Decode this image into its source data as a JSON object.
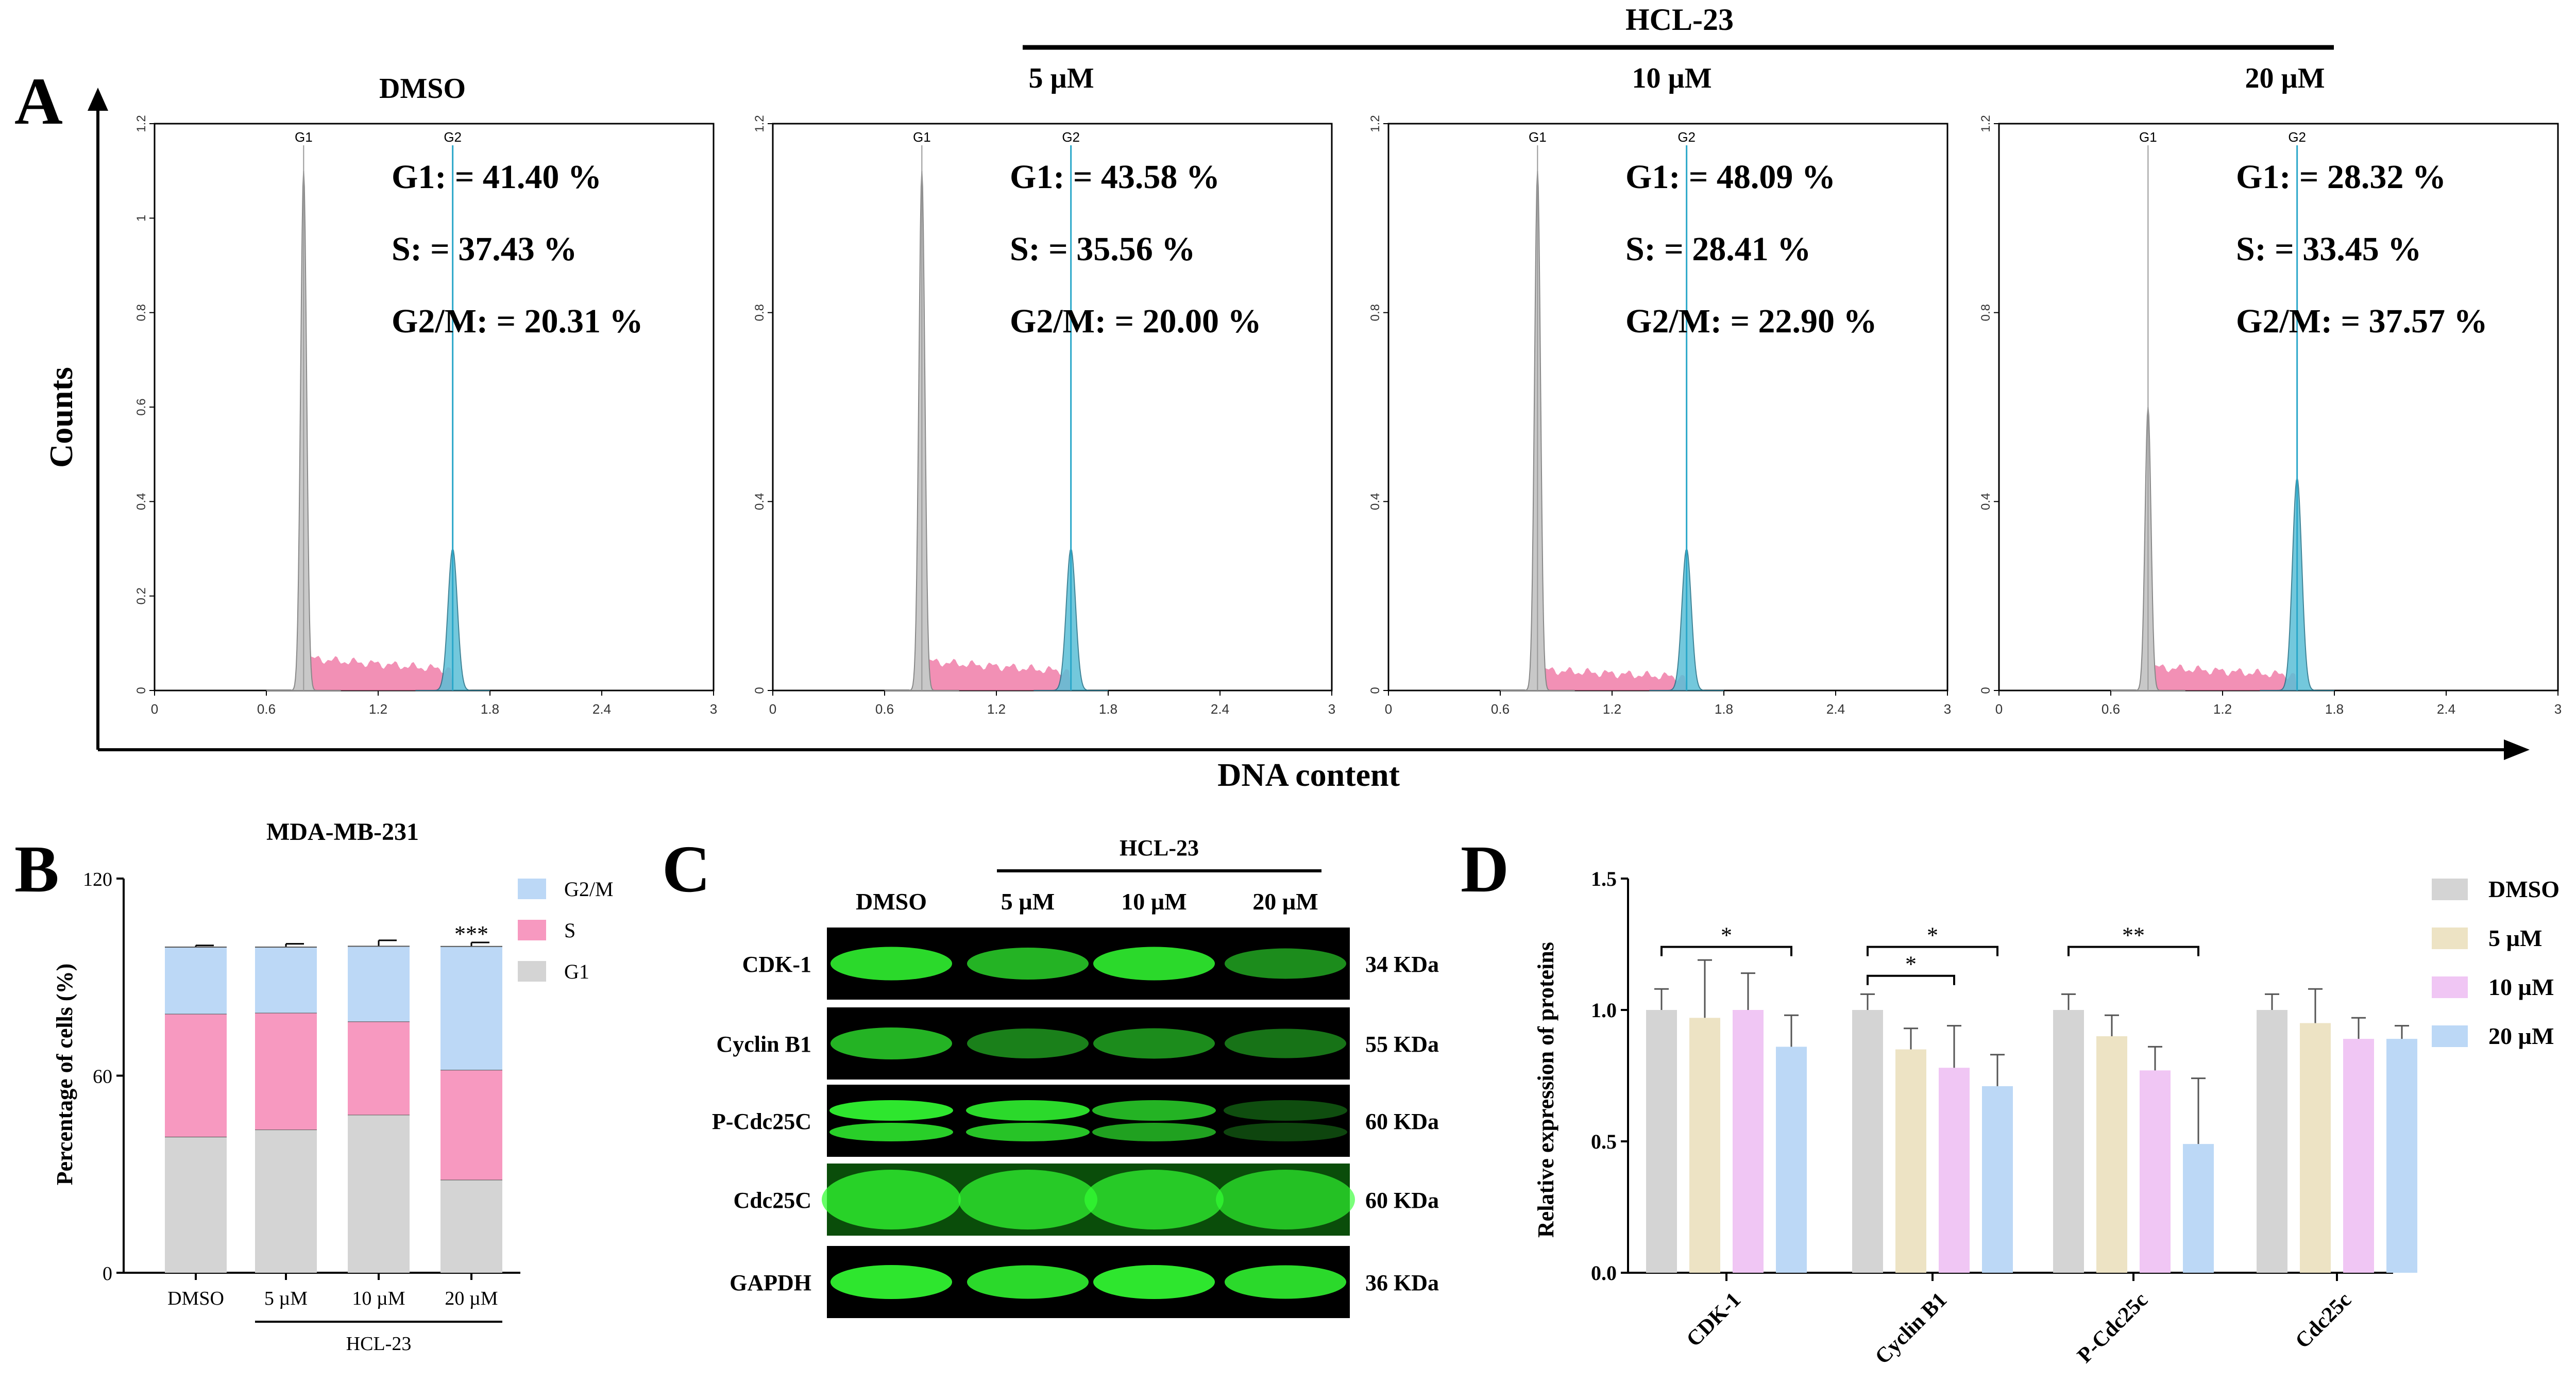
{
  "panels": {
    "a": "A",
    "b": "B",
    "c": "C",
    "d": "D"
  },
  "flow": {
    "group_label": "HCL-23",
    "control_label": "DMSO",
    "dose_labels": [
      "5 µM",
      "10 µM",
      "20 µM"
    ],
    "ylabel": "Counts",
    "xlabel": "DNA content",
    "peak_labels": [
      "G1",
      "G2"
    ],
    "ticks_x": [
      "0",
      "0.6",
      "1.2",
      "1.8",
      "2.4",
      "3"
    ],
    "ticks_y": [
      "0",
      "0.2",
      "0.4",
      "0.6",
      "0.8",
      "1",
      "1.2"
    ],
    "ticks_y_short": [
      "0",
      "0.4",
      "0.8",
      "1.2"
    ],
    "stat_names": [
      "G1:",
      "S:",
      "G2/M:"
    ],
    "colors": {
      "g1": "#c8c8c8",
      "s": "#f07ca8",
      "g2": "#5bbfd6",
      "g2line": "#2aa7c9"
    },
    "plots": [
      {
        "title": "DMSO",
        "g1": "41.40 %",
        "s": "37.43 %",
        "g2m": "20.31 %",
        "g1_peak": 1.1,
        "g2_peak": 0.3,
        "s_level": 0.055
      },
      {
        "title": "5 µM",
        "g1": "43.58 %",
        "s": "35.56 %",
        "g2m": "20.00 %",
        "g1_peak": 1.1,
        "g2_peak": 0.3,
        "s_level": 0.05
      },
      {
        "title": "10 µM",
        "g1": "48.09 %",
        "s": "28.41 %",
        "g2m": "22.90 %",
        "g1_peak": 1.1,
        "g2_peak": 0.3,
        "s_level": 0.035
      },
      {
        "title": "20 µM",
        "g1": "28.32 %",
        "s": "33.45 %",
        "g2m": "37.57 %",
        "g1_peak": 0.6,
        "g2_peak": 0.45,
        "s_level": 0.04
      }
    ]
  },
  "chart_data": [
    {
      "type": "bar",
      "stacked": true,
      "title": "MDA-MB-231",
      "ylabel": "Percentage of cells (%)",
      "ylim": [
        0,
        120
      ],
      "yticks": [
        "0",
        "60",
        "120"
      ],
      "categories": [
        "DMSO",
        "5 µM",
        "10 µM",
        "20 µM"
      ],
      "group_label": "HCL-23",
      "series": [
        {
          "name": "G1",
          "values": [
            41.4,
            43.58,
            48.09,
            28.32
          ],
          "err": [
            0.6,
            0.5,
            0.7,
            0.5
          ],
          "color": "#d4d4d4"
        },
        {
          "name": "S",
          "values": [
            37.43,
            35.56,
            28.41,
            33.45
          ],
          "err": [
            1.0,
            1.2,
            1.0,
            0.8
          ],
          "color": "#f799c0"
        },
        {
          "name": "G2/M",
          "values": [
            20.31,
            20.0,
            22.9,
            37.57
          ],
          "err": [
            0.5,
            1.0,
            1.8,
            1.2
          ],
          "color": "#bcd8f6"
        }
      ],
      "annotations": [
        {
          "category": "20 µM",
          "text": "***"
        }
      ],
      "legend": "right"
    },
    {
      "type": "bar",
      "ylabel": "Relative expression of proteins",
      "ylim": [
        0,
        1.5
      ],
      "yticks": [
        "0.0",
        "0.5",
        "1.0",
        "1.5"
      ],
      "categories": [
        "CDK-1",
        "Cyclin B1",
        "P-Cdc25c",
        "Cdc25c"
      ],
      "series": [
        {
          "name": "DMSO",
          "values": [
            1.0,
            1.0,
            1.0,
            1.0
          ],
          "err": [
            0.08,
            0.06,
            0.06,
            0.06
          ],
          "color": "#d4d4d4"
        },
        {
          "name": "5 µM",
          "values": [
            0.97,
            0.85,
            0.9,
            0.95
          ],
          "err": [
            0.22,
            0.08,
            0.08,
            0.13
          ],
          "color": "#ede3c4"
        },
        {
          "name": "10 µM",
          "values": [
            1.0,
            0.78,
            0.77,
            0.89
          ],
          "err": [
            0.14,
            0.16,
            0.09,
            0.08
          ],
          "color": "#f0c6f4"
        },
        {
          "name": "20 µM",
          "values": [
            0.86,
            0.71,
            0.49,
            0.89
          ],
          "err": [
            0.12,
            0.12,
            0.25,
            0.05
          ],
          "color": "#bcd8f6"
        }
      ],
      "significance": [
        {
          "category": "CDK-1",
          "from": "DMSO",
          "to": "20 µM",
          "text": "*"
        },
        {
          "category": "Cyclin B1",
          "from": "DMSO",
          "to": "10 µM",
          "text": "*"
        },
        {
          "category": "Cyclin B1",
          "from": "DMSO",
          "to": "20 µM",
          "text": "*"
        },
        {
          "category": "P-Cdc25c",
          "from": "DMSO",
          "to": "20 µM",
          "text": "**"
        }
      ],
      "legend": "right"
    }
  ],
  "blot": {
    "group_label": "HCL-23",
    "lanes": [
      "DMSO",
      "5 µM",
      "10 µM",
      "20 µM"
    ],
    "rows": [
      {
        "protein": "CDK-1",
        "size": "34 KDa",
        "intensity": [
          0.85,
          0.7,
          0.85,
          0.55
        ]
      },
      {
        "protein": "Cyclin B1",
        "size": "55 KDa",
        "intensity": [
          0.7,
          0.5,
          0.55,
          0.45
        ]
      },
      {
        "protein": "P-Cdc25C",
        "size": "60 KDa",
        "intensity": [
          0.9,
          0.85,
          0.7,
          0.3
        ]
      },
      {
        "protein": "Cdc25C",
        "size": "60 KDa",
        "intensity": [
          0.75,
          0.7,
          0.7,
          0.65
        ]
      },
      {
        "protein": "GAPDH",
        "size": "36 KDa",
        "intensity": [
          0.9,
          0.85,
          0.9,
          0.85
        ]
      }
    ]
  }
}
